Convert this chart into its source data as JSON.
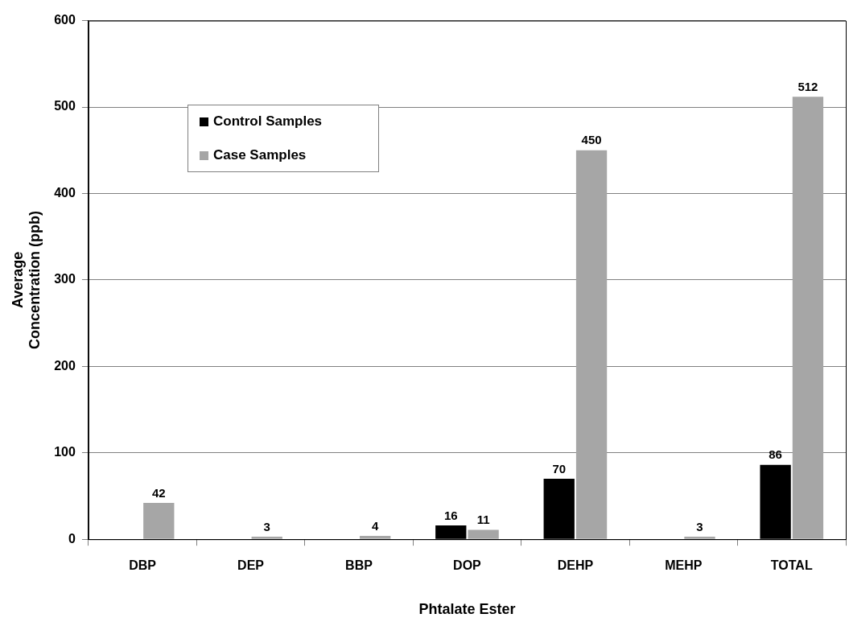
{
  "chart_data": {
    "type": "bar",
    "xlabel": "Phtalate Ester",
    "ylabel": "Average Concentration (ppb)",
    "categories": [
      "DBP",
      "DEP",
      "BBP",
      "DOP",
      "DEHP",
      "MEHP",
      "TOTAL"
    ],
    "series": [
      {
        "name": "Control Samples",
        "color": "#000000",
        "values": [
          null,
          null,
          null,
          16,
          70,
          null,
          86
        ],
        "value_labels": [
          null,
          null,
          null,
          "16",
          "70",
          null,
          "86"
        ]
      },
      {
        "name": "Case Samples",
        "color": "#a6a6a6",
        "values": [
          42,
          3,
          4,
          11,
          450,
          3,
          512
        ],
        "value_labels": [
          "42",
          "3",
          "4",
          "11",
          "450",
          "3",
          "512"
        ]
      }
    ],
    "ylim": [
      0,
      600
    ],
    "yticks": [
      0,
      100,
      200,
      300,
      400,
      500,
      600
    ],
    "grid": "y",
    "legend": "top left"
  }
}
